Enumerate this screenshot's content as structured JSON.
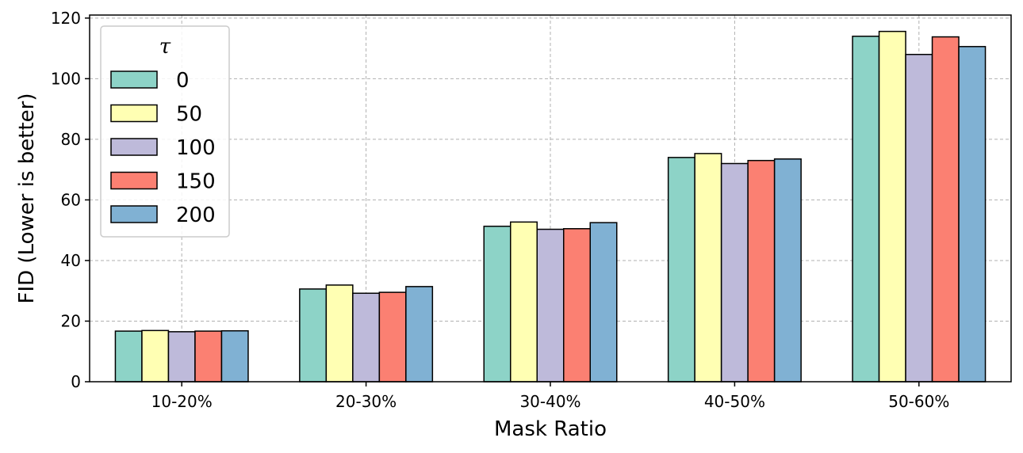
{
  "chart_data": {
    "type": "bar",
    "categories": [
      "10-20%",
      "20-30%",
      "30-40%",
      "40-50%",
      "50-60%"
    ],
    "series": [
      {
        "name": "0",
        "color": "#8dd3c7",
        "values": [
          16.7,
          30.6,
          51.3,
          74.0,
          114.0
        ]
      },
      {
        "name": "50",
        "color": "#ffffb3",
        "values": [
          16.9,
          31.9,
          52.7,
          75.3,
          115.6
        ]
      },
      {
        "name": "100",
        "color": "#bebada",
        "values": [
          16.5,
          29.2,
          50.3,
          72.0,
          108.0
        ]
      },
      {
        "name": "150",
        "color": "#fb8072",
        "values": [
          16.7,
          29.5,
          50.5,
          73.0,
          113.8
        ]
      },
      {
        "name": "200",
        "color": "#80b1d3",
        "values": [
          16.8,
          31.4,
          52.5,
          73.5,
          110.6
        ]
      }
    ],
    "xlabel": "Mask Ratio",
    "ylabel": "FID (Lower is better)",
    "ylim": [
      0,
      121
    ],
    "yticks": [
      "0",
      "20",
      "40",
      "60",
      "80",
      "100",
      "120"
    ],
    "legend_title": "τ",
    "legend_position": "top-left",
    "grid": true
  }
}
